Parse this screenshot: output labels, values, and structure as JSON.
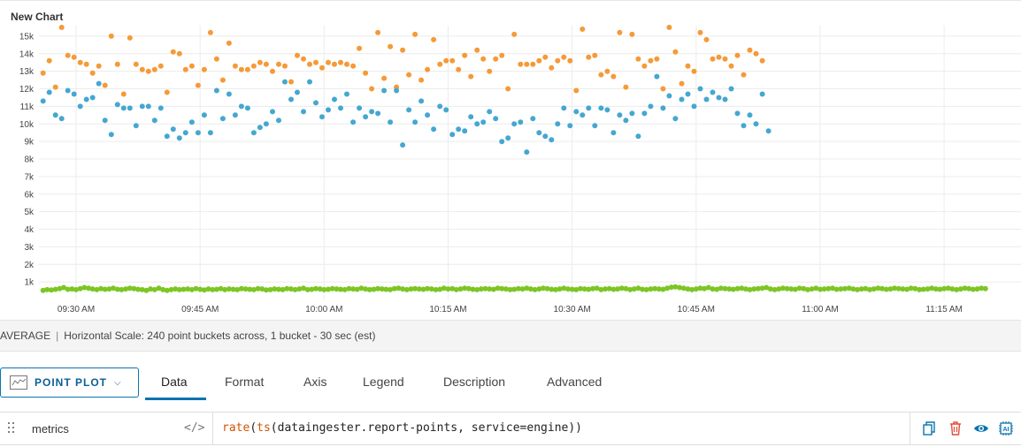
{
  "chart": {
    "title": "New Chart"
  },
  "summary": {
    "aggregation": "AVERAGE",
    "scale_text": "Horizontal Scale: 240 point buckets across, 1 bucket - 30 sec (est)"
  },
  "editor": {
    "chart_type_label": "POINT PLOT",
    "tabs": [
      {
        "label": "Data",
        "active": true
      },
      {
        "label": "Format",
        "active": false
      },
      {
        "label": "Axis",
        "active": false
      },
      {
        "label": "Legend",
        "active": false
      },
      {
        "label": "Description",
        "active": false
      },
      {
        "label": "Advanced",
        "active": false
      }
    ],
    "query": {
      "name": "metrics",
      "code_toggle": "</>",
      "expression_fn": "rate",
      "expression_open": "(",
      "expression_inner_fn": "ts",
      "expression_args": "(dataingester.report-points, service=engine))"
    }
  },
  "icons": {
    "copy": "copy-icon",
    "delete": "trash-icon",
    "view": "eye-icon",
    "ai": "ai-icon",
    "drag": "drag-handle-icon",
    "chart_type": "chart-type-icon",
    "chevron": "chevron-down-icon"
  },
  "colors": {
    "accent": "#0a74b0",
    "series_orange": "#f59a37",
    "series_blue": "#45a7d1",
    "series_green": "#7cc624",
    "delete_red": "#e04c3c"
  },
  "chart_data": {
    "type": "scatter",
    "title": "New Chart",
    "xlabel": "",
    "ylabel": "",
    "ylim": [
      0,
      15600
    ],
    "y_ticks": [
      "1k",
      "2k",
      "3k",
      "4k",
      "5k",
      "6k",
      "7k",
      "8k",
      "9k",
      "10k",
      "11k",
      "12k",
      "13k",
      "14k",
      "15k"
    ],
    "x_ticks": [
      "09:30 AM",
      "09:45 AM",
      "10:00 AM",
      "10:15 AM",
      "10:30 AM",
      "10:45 AM",
      "11:00 AM",
      "11:15 AM"
    ],
    "x_tick_minutes": [
      570,
      585,
      600,
      615,
      630,
      645,
      660,
      675
    ],
    "x_range_minutes": [
      565.5,
      684.3
    ],
    "grid": true,
    "series": [
      {
        "color": "#f59a37",
        "t_start": 566,
        "t_step": 0.75,
        "values": [
          12900,
          13600,
          12100,
          15500,
          13900,
          13800,
          13500,
          13400,
          12900,
          13300,
          12200,
          15000,
          13400,
          11700,
          14900,
          13400,
          13100,
          13000,
          13100,
          13300,
          11800,
          14100,
          14000,
          13100,
          13300,
          12200,
          13100,
          15200,
          13700,
          12500,
          14600,
          13300,
          13100,
          13100,
          13300,
          13500,
          13400,
          13000,
          13400,
          13300,
          12400,
          13900,
          13700,
          13400,
          13500,
          13200,
          13500,
          13400,
          13500,
          13400,
          13300,
          14300,
          12900,
          12000,
          15200,
          12600,
          14400,
          12100,
          14200,
          12800,
          15100,
          12500,
          13100,
          14800,
          13400,
          13600,
          13600,
          13100,
          13900,
          12700,
          14200,
          13700,
          13000,
          13700,
          13900,
          12000,
          15100,
          13400,
          13400,
          13400,
          13600,
          13800,
          13200,
          13600,
          13800,
          13600,
          11900,
          15400,
          13800,
          13900,
          12800,
          13000,
          12700,
          15200,
          12100,
          15100,
          13700,
          13300,
          13600,
          13700,
          12000,
          15500,
          14100,
          12300,
          13300,
          13000,
          15200,
          14800,
          13700,
          13800,
          13700,
          13300,
          13900,
          12800,
          14200,
          14000,
          13600
        ]
      },
      {
        "color": "#45a7d1",
        "t_start": 566,
        "t_step": 0.75,
        "values": [
          11300,
          11800,
          10500,
          10300,
          11900,
          11700,
          11000,
          11400,
          11500,
          12300,
          10200,
          9400,
          11100,
          10900,
          10900,
          9900,
          11000,
          11000,
          10200,
          10900,
          9300,
          9700,
          9200,
          9500,
          10100,
          9500,
          10500,
          9500,
          11900,
          10300,
          11700,
          10500,
          11000,
          10900,
          9500,
          9800,
          10000,
          10700,
          10200,
          12400,
          11400,
          11800,
          10700,
          12400,
          11200,
          10400,
          10800,
          11400,
          10900,
          11700,
          10100,
          10900,
          10400,
          10700,
          10600,
          11900,
          10100,
          11900,
          8800,
          10800,
          10100,
          11300,
          10500,
          9700,
          11000,
          10800,
          9400,
          9700,
          9600,
          10400,
          10000,
          10100,
          10700,
          10300,
          9000,
          9200,
          10000,
          10100,
          8400,
          10300,
          9500,
          9300,
          9100,
          10000,
          10900,
          9900,
          10700,
          10500,
          10900,
          9900,
          10900,
          10800,
          9500,
          10500,
          10200,
          10600,
          9300,
          10600,
          11000,
          12700,
          10900,
          11600,
          10300,
          11400,
          11700,
          11000,
          12000,
          11400,
          11800,
          11500,
          11400,
          12000,
          10600,
          9900,
          10500,
          10000,
          11700,
          9600
        ]
      },
      {
        "color": "#7cc624",
        "t_start": 566,
        "t_step": 0.5,
        "values": [
          520,
          560,
          540,
          580,
          620,
          680,
          580,
          600,
          560,
          620,
          680,
          640,
          600,
          560,
          620,
          580,
          600,
          640,
          580,
          560,
          600,
          640,
          620,
          580,
          560,
          520,
          600,
          560,
          640,
          560,
          520,
          560,
          600,
          560,
          580,
          600,
          560,
          620,
          580,
          540,
          600,
          560,
          580,
          620,
          560,
          600,
          580,
          560,
          620,
          600,
          580,
          560,
          620,
          600,
          540,
          560,
          600,
          580,
          560,
          620,
          600,
          560,
          600,
          640,
          560,
          580,
          620,
          600,
          560,
          580,
          620,
          600,
          580,
          560,
          620,
          600,
          580,
          640,
          600,
          560,
          580,
          620,
          600,
          580,
          560,
          620,
          640,
          600,
          560,
          600,
          620,
          600,
          580,
          620,
          600,
          560,
          580,
          640,
          600,
          620,
          560,
          600,
          640,
          620,
          580,
          560,
          600,
          620,
          600,
          580,
          640,
          620,
          600,
          560,
          580,
          620,
          600,
          640,
          600,
          560,
          600,
          640,
          620,
          580,
          560,
          600,
          640,
          600,
          580,
          560,
          620,
          600,
          580,
          620,
          640,
          560,
          600,
          620,
          580,
          600,
          640,
          620,
          560,
          600,
          640,
          580,
          560,
          600,
          620,
          600,
          580,
          640,
          700,
          720,
          680,
          640,
          600,
          560,
          600,
          640,
          620,
          680,
          600,
          580,
          640,
          620,
          600,
          580,
          620,
          640,
          600,
          560,
          600,
          620,
          640,
          680,
          600,
          560,
          600,
          640,
          620,
          600,
          580,
          640,
          620,
          560,
          600,
          640,
          580,
          600,
          620,
          640,
          580,
          600,
          620,
          640,
          600,
          560,
          600,
          620,
          560,
          600,
          640,
          620,
          580,
          600,
          640,
          620,
          600,
          580,
          640,
          620,
          560,
          580,
          600,
          640,
          600,
          580,
          620,
          640,
          600,
          560,
          600,
          640,
          620,
          580,
          600,
          640,
          620
        ]
      }
    ]
  }
}
